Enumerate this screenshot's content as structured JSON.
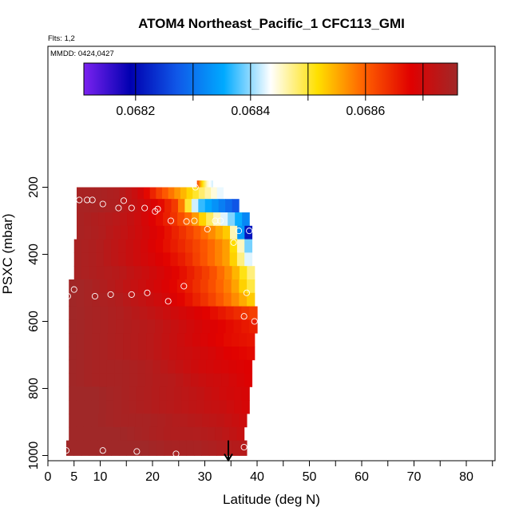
{
  "chart_data": {
    "type": "heatmap",
    "title": "ATOM4 Northeast_Pacific_1 CFC113_GMI",
    "flights_note": "Flts: 1,2",
    "date_note": "MMDD: 0424,0427",
    "xlabel": "Latitude (deg N)",
    "ylabel": "PSXC (mbar)",
    "xlim": [
      0,
      85
    ],
    "ylim": [
      1000,
      80
    ],
    "y_reversed": true,
    "xticks": [
      0,
      5,
      10,
      20,
      30,
      40,
      50,
      60,
      70,
      80
    ],
    "xticks_minor": [
      15,
      25,
      35,
      45,
      55,
      65,
      75,
      85
    ],
    "yticks": [
      200,
      400,
      600,
      800,
      1000
    ],
    "colorbar": {
      "range": [
        0.06811,
        0.06876
      ],
      "ticks": [
        0.0682,
        0.0684,
        0.0686
      ],
      "tick_labels": [
        "0.0682",
        "0.0684",
        "0.0686"
      ],
      "boundaries": [
        0.0681,
        0.0682,
        0.0683,
        0.0684,
        0.0685,
        0.0686,
        0.0687
      ],
      "colormap": [
        "#7b22f0",
        "#0000b0",
        "#1058e8",
        "#00aaff",
        "#ffffff",
        "#ffe000",
        "#ff6000",
        "#e00000",
        "#a02828"
      ]
    },
    "levels": [
      {
        "p_top": 180,
        "p_bot": 200,
        "lat_min": 28.5,
        "lat_max": 31.5,
        "values": [
          0.06862,
          0.06852,
          0.06845,
          0.06842
        ]
      },
      {
        "p_top": 200,
        "p_bot": 235,
        "lat_min": 5.5,
        "lat_max": 33.5,
        "values": [
          0.06875,
          0.06875,
          0.06874,
          0.0687,
          0.06862,
          0.06855,
          0.06848,
          0.06842
        ]
      },
      {
        "p_top": 235,
        "p_bot": 275,
        "lat_min": 5.5,
        "lat_max": 36.5,
        "values": [
          0.06875,
          0.06875,
          0.06874,
          0.06871,
          0.06868,
          0.06862,
          0.06838,
          0.06832,
          0.06826
        ]
      },
      {
        "p_top": 275,
        "p_bot": 315,
        "lat_min": 5.5,
        "lat_max": 38.5,
        "values": [
          0.06875,
          0.06874,
          0.06873,
          0.06871,
          0.06868,
          0.06864,
          0.06858,
          0.06848,
          0.0684,
          0.0683
        ]
      },
      {
        "p_top": 315,
        "p_bot": 355,
        "lat_min": 5.5,
        "lat_max": 39.0,
        "values": [
          0.06875,
          0.06874,
          0.06872,
          0.0687,
          0.06867,
          0.06863,
          0.06858,
          0.06852,
          0.06815
        ]
      },
      {
        "p_top": 355,
        "p_bot": 395,
        "lat_min": 5.0,
        "lat_max": 39.0,
        "values": [
          0.06875,
          0.06874,
          0.06872,
          0.0687,
          0.06867,
          0.06864,
          0.0686,
          0.06855,
          0.06836
        ]
      },
      {
        "p_top": 395,
        "p_bot": 435,
        "lat_min": 5.0,
        "lat_max": 39.0,
        "values": [
          0.06875,
          0.06874,
          0.06872,
          0.0687,
          0.06868,
          0.06865,
          0.0686,
          0.06855,
          0.0684
        ]
      },
      {
        "p_top": 435,
        "p_bot": 475,
        "lat_min": 5.0,
        "lat_max": 39.5,
        "values": [
          0.06875,
          0.06874,
          0.06873,
          0.06871,
          0.06869,
          0.06866,
          0.06862,
          0.06856,
          0.06846
        ]
      },
      {
        "p_top": 475,
        "p_bot": 515,
        "lat_min": 4.0,
        "lat_max": 39.5,
        "values": [
          0.06876,
          0.06875,
          0.06873,
          0.06871,
          0.06869,
          0.06866,
          0.06862,
          0.06857,
          0.06848
        ]
      },
      {
        "p_top": 515,
        "p_bot": 555,
        "lat_min": 4.0,
        "lat_max": 39.5,
        "values": [
          0.06876,
          0.06875,
          0.06874,
          0.06872,
          0.0687,
          0.06867,
          0.06863,
          0.06858,
          0.06852
        ]
      },
      {
        "p_top": 555,
        "p_bot": 595,
        "lat_min": 4.0,
        "lat_max": 40.0,
        "values": [
          0.06876,
          0.06875,
          0.06874,
          0.06872,
          0.0687,
          0.06868,
          0.06865,
          0.06862
        ]
      },
      {
        "p_top": 595,
        "p_bot": 635,
        "lat_min": 4.0,
        "lat_max": 40.0,
        "values": [
          0.06876,
          0.06875,
          0.06874,
          0.06873,
          0.06871,
          0.06869,
          0.06867,
          0.06865
        ]
      },
      {
        "p_top": 635,
        "p_bot": 675,
        "lat_min": 4.0,
        "lat_max": 39.5,
        "values": [
          0.06876,
          0.06875,
          0.06874,
          0.06873,
          0.06871,
          0.06869,
          0.06867,
          0.06866
        ]
      },
      {
        "p_top": 675,
        "p_bot": 715,
        "lat_min": 4.0,
        "lat_max": 39.5,
        "values": [
          0.06876,
          0.06875,
          0.06874,
          0.06873,
          0.06871,
          0.0687,
          0.06868,
          0.06867
        ]
      },
      {
        "p_top": 715,
        "p_bot": 755,
        "lat_min": 4.0,
        "lat_max": 39.0,
        "values": [
          0.06876,
          0.06875,
          0.06875,
          0.06874,
          0.06872,
          0.0687,
          0.06869,
          0.06868
        ]
      },
      {
        "p_top": 755,
        "p_bot": 795,
        "lat_min": 4.0,
        "lat_max": 39.0,
        "values": [
          0.06876,
          0.06875,
          0.06875,
          0.06874,
          0.06873,
          0.06871,
          0.0687,
          0.06868
        ]
      },
      {
        "p_top": 795,
        "p_bot": 835,
        "lat_min": 4.0,
        "lat_max": 38.5,
        "values": [
          0.06876,
          0.06876,
          0.06875,
          0.06874,
          0.06873,
          0.06872,
          0.0687,
          0.06869
        ]
      },
      {
        "p_top": 835,
        "p_bot": 875,
        "lat_min": 4.0,
        "lat_max": 38.5,
        "values": [
          0.06876,
          0.06876,
          0.06875,
          0.06874,
          0.06873,
          0.06872,
          0.06871,
          0.06869
        ]
      },
      {
        "p_top": 875,
        "p_bot": 915,
        "lat_min": 4.0,
        "lat_max": 38.0,
        "values": [
          0.06876,
          0.06876,
          0.06875,
          0.06875,
          0.06874,
          0.06873,
          0.06872,
          0.0687
        ]
      },
      {
        "p_top": 915,
        "p_bot": 955,
        "lat_min": 4.0,
        "lat_max": 37.5,
        "values": [
          0.06876,
          0.06876,
          0.06876,
          0.06875,
          0.06874,
          0.06874,
          0.06873,
          0.06871
        ]
      },
      {
        "p_top": 955,
        "p_bot": 1000,
        "lat_min": 3.5,
        "lat_max": 38.0,
        "values": [
          0.06876,
          0.06876,
          0.06876,
          0.06876,
          0.06875,
          0.06875,
          0.06874,
          0.06873
        ]
      }
    ],
    "sample_points": [
      {
        "lat": 28.2,
        "p": 200
      },
      {
        "lat": 6.0,
        "p": 238
      },
      {
        "lat": 7.5,
        "p": 238
      },
      {
        "lat": 8.5,
        "p": 238
      },
      {
        "lat": 14.5,
        "p": 240
      },
      {
        "lat": 10.5,
        "p": 250
      },
      {
        "lat": 13.5,
        "p": 262
      },
      {
        "lat": 16.0,
        "p": 262
      },
      {
        "lat": 18.5,
        "p": 262
      },
      {
        "lat": 21.0,
        "p": 265
      },
      {
        "lat": 20.5,
        "p": 272
      },
      {
        "lat": 23.5,
        "p": 300
      },
      {
        "lat": 26.5,
        "p": 302
      },
      {
        "lat": 28.0,
        "p": 300
      },
      {
        "lat": 32.0,
        "p": 300
      },
      {
        "lat": 33.0,
        "p": 300
      },
      {
        "lat": 30.5,
        "p": 325
      },
      {
        "lat": 36.5,
        "p": 330
      },
      {
        "lat": 38.5,
        "p": 330
      },
      {
        "lat": 35.5,
        "p": 365
      },
      {
        "lat": 5.0,
        "p": 505
      },
      {
        "lat": 26.0,
        "p": 495
      },
      {
        "lat": 3.8,
        "p": 525
      },
      {
        "lat": 9.0,
        "p": 525
      },
      {
        "lat": 12.0,
        "p": 520
      },
      {
        "lat": 16.0,
        "p": 520
      },
      {
        "lat": 19.0,
        "p": 515
      },
      {
        "lat": 38.0,
        "p": 515
      },
      {
        "lat": 23.0,
        "p": 540
      },
      {
        "lat": 37.5,
        "p": 585
      },
      {
        "lat": 39.5,
        "p": 600
      },
      {
        "lat": 3.5,
        "p": 985
      },
      {
        "lat": 10.5,
        "p": 985
      },
      {
        "lat": 17.0,
        "p": 988
      },
      {
        "lat": 24.5,
        "p": 995
      },
      {
        "lat": 37.5,
        "p": 975
      }
    ],
    "arrow_marker": {
      "lat": 34.5,
      "p_start": 955,
      "p_end": 1000
    }
  }
}
